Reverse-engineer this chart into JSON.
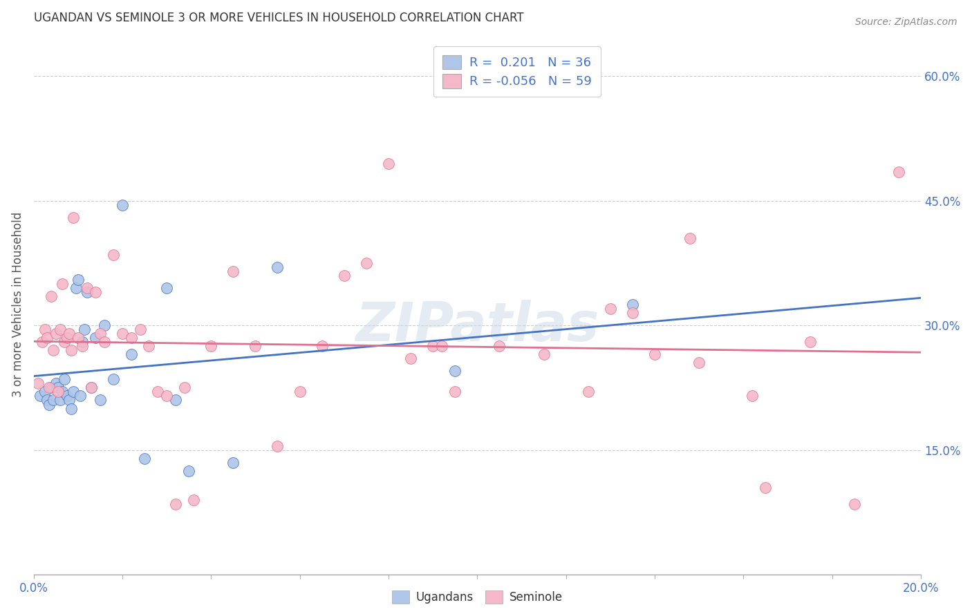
{
  "title": "UGANDAN VS SEMINOLE 3 OR MORE VEHICLES IN HOUSEHOLD CORRELATION CHART",
  "source": "Source: ZipAtlas.com",
  "ylabel": "3 or more Vehicles in Household",
  "xlim": [
    0.0,
    20.0
  ],
  "ylim": [
    0.0,
    65.0
  ],
  "y_ticks": [
    15.0,
    30.0,
    45.0,
    60.0
  ],
  "legend_r1_text": "R =  0.201",
  "legend_n1_text": "N = 36",
  "legend_r2_text": "R = -0.056",
  "legend_n2_text": "N = 59",
  "ugandan_color": "#aec6e8",
  "seminole_color": "#f4b8c8",
  "ugandan_line_color": "#4472c4",
  "seminole_line_color": "#e07090",
  "background_color": "#ffffff",
  "watermark": "ZIPatlas",
  "ugandan_points_x": [
    0.15,
    0.25,
    0.3,
    0.35,
    0.4,
    0.45,
    0.5,
    0.55,
    0.6,
    0.65,
    0.7,
    0.75,
    0.8,
    0.85,
    0.9,
    0.95,
    1.0,
    1.05,
    1.1,
    1.15,
    1.2,
    1.3,
    1.4,
    1.5,
    1.6,
    1.8,
    2.0,
    2.2,
    2.5,
    3.0,
    3.2,
    3.5,
    4.5,
    5.5,
    9.5,
    13.5
  ],
  "ugandan_points_y": [
    21.5,
    22.0,
    21.0,
    20.5,
    22.5,
    21.0,
    23.0,
    22.5,
    21.0,
    22.0,
    23.5,
    21.5,
    21.0,
    20.0,
    22.0,
    34.5,
    35.5,
    21.5,
    28.0,
    29.5,
    34.0,
    22.5,
    28.5,
    21.0,
    30.0,
    23.5,
    44.5,
    26.5,
    14.0,
    34.5,
    21.0,
    12.5,
    13.5,
    37.0,
    24.5,
    32.5
  ],
  "seminole_points_x": [
    0.1,
    0.2,
    0.25,
    0.3,
    0.35,
    0.4,
    0.45,
    0.5,
    0.55,
    0.6,
    0.65,
    0.7,
    0.75,
    0.8,
    0.85,
    0.9,
    1.0,
    1.1,
    1.2,
    1.3,
    1.4,
    1.5,
    1.6,
    1.8,
    2.0,
    2.2,
    2.4,
    2.6,
    2.8,
    3.0,
    3.2,
    3.4,
    3.6,
    4.0,
    4.5,
    5.0,
    5.5,
    6.0,
    6.5,
    7.0,
    7.5,
    8.0,
    8.5,
    9.0,
    9.5,
    10.5,
    11.5,
    12.5,
    13.5,
    14.0,
    15.0,
    16.5,
    17.5,
    18.5,
    19.5,
    9.2,
    14.8,
    13.0,
    16.2
  ],
  "seminole_points_y": [
    23.0,
    28.0,
    29.5,
    28.5,
    22.5,
    33.5,
    27.0,
    29.0,
    22.0,
    29.5,
    35.0,
    28.0,
    28.5,
    29.0,
    27.0,
    43.0,
    28.5,
    27.5,
    34.5,
    22.5,
    34.0,
    29.0,
    28.0,
    38.5,
    29.0,
    28.5,
    29.5,
    27.5,
    22.0,
    21.5,
    8.5,
    22.5,
    9.0,
    27.5,
    36.5,
    27.5,
    15.5,
    22.0,
    27.5,
    36.0,
    37.5,
    49.5,
    26.0,
    27.5,
    22.0,
    27.5,
    26.5,
    22.0,
    31.5,
    26.5,
    25.5,
    10.5,
    28.0,
    8.5,
    48.5,
    27.5,
    40.5,
    32.0,
    21.5
  ]
}
